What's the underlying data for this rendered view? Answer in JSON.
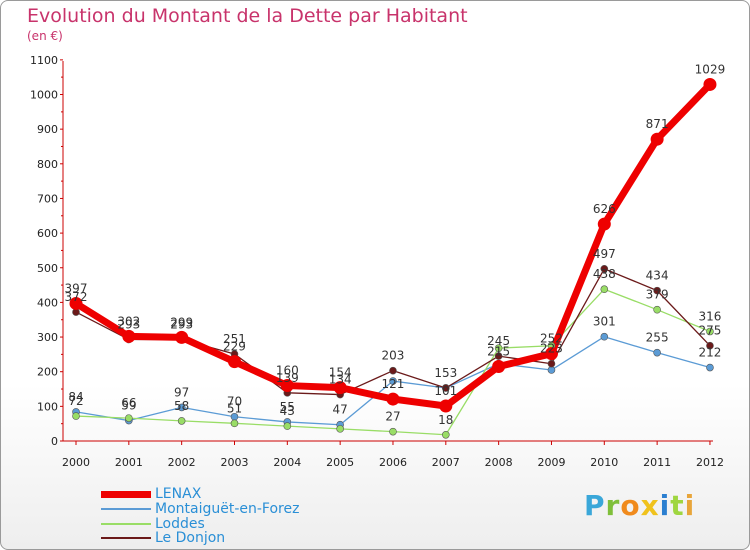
{
  "header": {
    "title": "Evolution du Montant de la Dette par Habitant",
    "unit": "(en €)"
  },
  "colors": {
    "title": "#c8336b",
    "axis": "#cc0000",
    "legend_text": "#2a8fd6",
    "LENAX": "#ee0000",
    "Montaiguët-en-Forez": "#5b9bd5",
    "Loddes": "#99dd66",
    "Le Donjon": "#6b1a1a"
  },
  "logo": {
    "text": "Proxiti"
  },
  "chart_data": {
    "type": "line",
    "x": [
      "2000",
      "2001",
      "2002",
      "2003",
      "2004",
      "2005",
      "2006",
      "2007",
      "2008",
      "2009",
      "2010",
      "2011",
      "2012"
    ],
    "ylim": [
      0,
      1100
    ],
    "yticks": [
      "0",
      "100",
      "200",
      "300",
      "400",
      "500",
      "600",
      "700",
      "800",
      "900",
      "1000",
      "1100"
    ],
    "grid": false,
    "legend_position": "bottom-left",
    "series": [
      {
        "name": "Montaiguët-en-Forez",
        "values": [
          84,
          59,
          97,
          70,
          55,
          47,
          173,
          153,
          223,
          205,
          301,
          255,
          212
        ]
      },
      {
        "name": "Loddes",
        "values": [
          72,
          66,
          58,
          51,
          43,
          35,
          27,
          18,
          268,
          275,
          438,
          379,
          316
        ]
      },
      {
        "name": "Le Donjon",
        "values": [
          372,
          293,
          293,
          251,
          139,
          134,
          203,
          153,
          245,
          223,
          497,
          434,
          275
        ]
      },
      {
        "name": "LENAX",
        "values": [
          397,
          302,
          299,
          229,
          160,
          154,
          121,
          101,
          215,
          252,
          626,
          871,
          1029
        ]
      }
    ],
    "labels": [
      {
        "series": "LENAX",
        "values": [
          "397",
          "302",
          "299",
          "229",
          "160",
          "154",
          "121",
          "101",
          "215",
          "252",
          "626",
          "871",
          "1029"
        ]
      },
      {
        "series": "Montaiguët-en-Forez",
        "values": [
          "84",
          "59",
          "97",
          "70",
          "55",
          "47",
          "",
          "",
          "",
          "",
          "301",
          "255",
          "212"
        ]
      },
      {
        "series": "Loddes",
        "values": [
          "72",
          "66",
          "58",
          "51",
          "43",
          "",
          "27",
          "18",
          "",
          "",
          "438",
          "379",
          "316"
        ]
      },
      {
        "series": "Le Donjon",
        "values": [
          "372",
          "293",
          "293",
          "251",
          "139",
          "134",
          "203",
          "153",
          "245",
          "223",
          "497",
          "434",
          "275"
        ]
      }
    ]
  }
}
